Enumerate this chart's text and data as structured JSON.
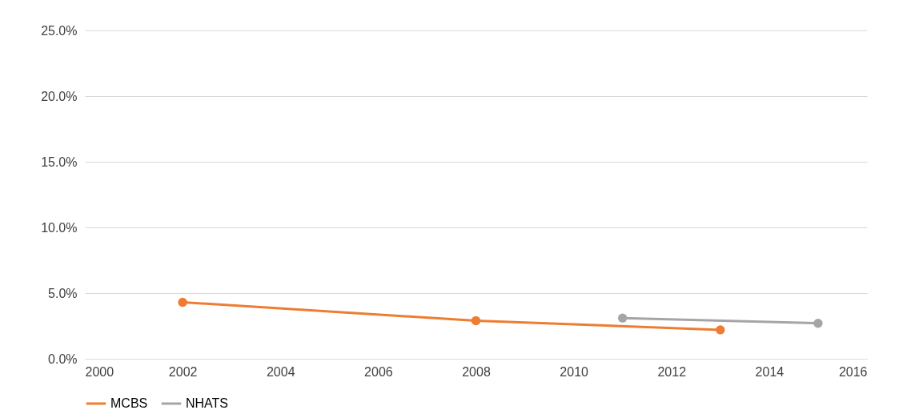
{
  "chart_data": {
    "type": "line",
    "series": [
      {
        "name": "MCBS",
        "color": "#ed7d31",
        "x": [
          2002,
          2008,
          2013
        ],
        "values": [
          4.3,
          2.9,
          2.2
        ]
      },
      {
        "name": "NHATS",
        "color": "#a5a5a5",
        "x": [
          2011,
          2015
        ],
        "values": [
          3.1,
          2.7
        ]
      }
    ],
    "xlim": [
      2000,
      2016
    ],
    "xticks": [
      2000,
      2002,
      2004,
      2006,
      2008,
      2010,
      2012,
      2014,
      2016
    ],
    "ylim": [
      0,
      25
    ],
    "yticks": [
      {
        "value": 0,
        "label": "0.0%"
      },
      {
        "value": 5,
        "label": "5.0%"
      },
      {
        "value": 10,
        "label": "10.0%"
      },
      {
        "value": 15,
        "label": "15.0%"
      },
      {
        "value": 20,
        "label": "20.0%"
      },
      {
        "value": 25,
        "label": "25.0%"
      }
    ],
    "grid": "y",
    "legend": "bottom",
    "marker": "circle",
    "line_style": "solid"
  }
}
